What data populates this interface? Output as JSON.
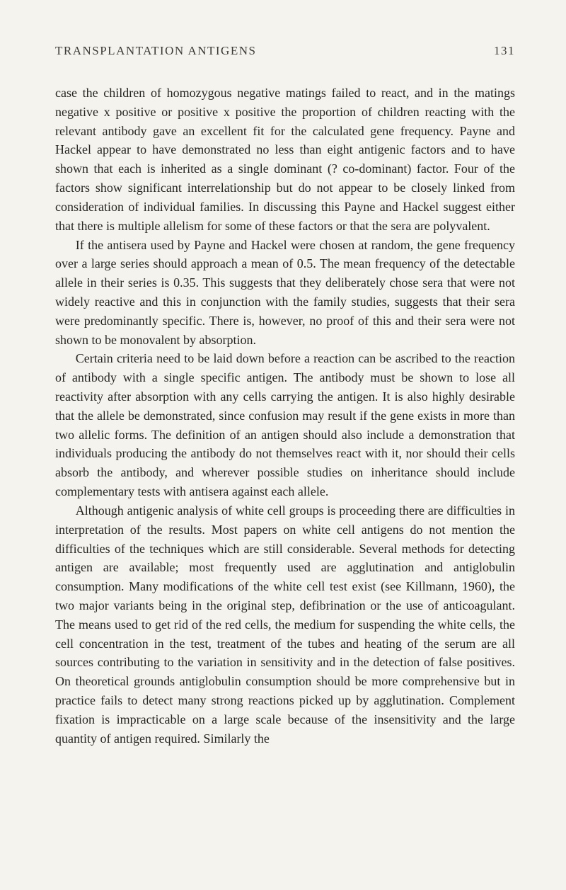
{
  "header": {
    "title": "TRANSPLANTATION ANTIGENS",
    "page_number": "131"
  },
  "paragraphs": {
    "p1": "case the children of homozygous negative matings failed to react, and in the matings negative x positive or positive x positive the proportion of children reacting with the relevant antibody gave an excellent fit for the calculated gene frequency. Payne and Hackel appear to have demonstrated no less than eight antigenic factors and to have shown that each is inherited as a single dominant (? co-dominant) factor. Four of the factors show significant interrelationship but do not appear to be closely linked from consideration of individual families. In discussing this Payne and Hackel suggest either that there is multiple allelism for some of these factors or that the sera are polyvalent.",
    "p2": "If the antisera used by Payne and Hackel were chosen at random, the gene frequency over a large series should approach a mean of 0.5. The mean frequency of the detectable allele in their series is 0.35. This suggests that they deliberately chose sera that were not widely reactive and this in conjunction with the family studies, suggests that their sera were predominantly specific. There is, however, no proof of this and their sera were not shown to be monovalent by absorption.",
    "p3": "Certain criteria need to be laid down before a reaction can be ascribed to the reaction of antibody with a single specific antigen. The antibody must be shown to lose all reactivity after absorption with any cells carrying the antigen. It is also highly desirable that the allele be demonstrated, since confusion may result if the gene exists in more than two allelic forms. The definition of an antigen should also include a demonstration that individuals producing the antibody do not themselves react with it, nor should their cells absorb the antibody, and wherever possible studies on inheritance should include complementary tests with antisera against each allele.",
    "p4": "Although antigenic analysis of white cell groups is proceeding there are difficulties in interpretation of the results. Most papers on white cell antigens do not mention the difficulties of the techniques which are still considerable. Several methods for detecting antigen are available; most frequently used are agglutination and antiglobulin consumption. Many modifications of the white cell test exist (see Killmann, 1960), the two major variants being in the original step, defibrination or the use of anticoagulant. The means used to get rid of the red cells, the medium for suspending the white cells, the cell concentration in the test, treatment of the tubes and heating of the serum are all sources contributing to the variation in sensitivity and in the detection of false positives. On theoretical grounds antiglobulin consumption should be more comprehensive but in practice fails to detect many strong reactions picked up by agglutination. Complement fixation is impracticable on a large scale because of the insensitivity and the large quantity of antigen required. Similarly the"
  },
  "style": {
    "background_color": "#f5f3ee",
    "text_color": "#252522",
    "header_text_color": "#3a3a36",
    "font_family": "Times New Roman",
    "body_font_size": 18,
    "header_font_size": 17,
    "line_height": 1.49,
    "text_indent": "1.6em",
    "letter_spacing_header": "1.5px"
  }
}
